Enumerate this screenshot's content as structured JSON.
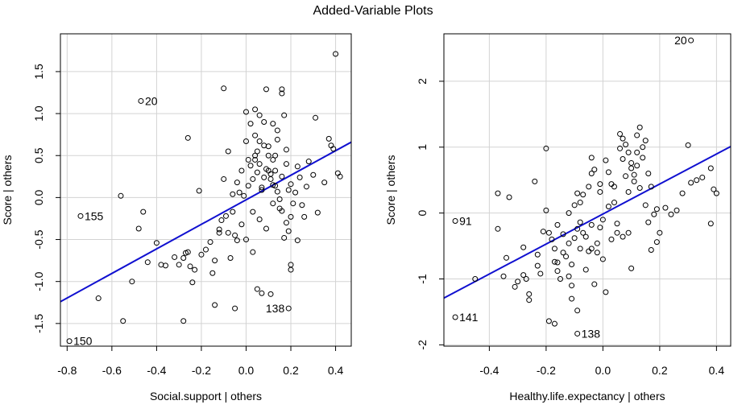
{
  "page": {
    "title": "Added-Variable Plots"
  },
  "colors": {
    "fit_line": "#1010d0",
    "grid": "#d3d3d3",
    "points": "#000000",
    "background": "#ffffff"
  },
  "chart_data": [
    {
      "type": "scatter",
      "xlabel": "Social.support | others",
      "ylabel": "Score  | others",
      "xlim": [
        -0.83,
        0.47
      ],
      "ylim": [
        -1.77,
        1.95
      ],
      "xticks": [
        -0.8,
        -0.6,
        -0.4,
        -0.2,
        0.0,
        0.2,
        0.4
      ],
      "yticks": [
        -1.5,
        -1.0,
        -0.5,
        0.0,
        0.5,
        1.0,
        1.5
      ],
      "tick_labels_x": [
        "-0.8",
        "-0.6",
        "-0.4",
        "-0.2",
        "0.0",
        "0.2",
        "0.4"
      ],
      "tick_labels_y": [
        "-1.5",
        "-1.0",
        "-0.5",
        "0.0",
        "0.5",
        "1.0",
        "1.5"
      ],
      "grid": true,
      "fit_line": {
        "x": [
          -0.83,
          0.47
        ],
        "y": [
          -1.24,
          0.66
        ]
      },
      "labeled_points": [
        {
          "x": -0.79,
          "y": -1.71,
          "label": "150"
        },
        {
          "x": -0.47,
          "y": 1.15,
          "label": "20"
        },
        {
          "x": -0.74,
          "y": -0.22,
          "label": "155"
        },
        {
          "x": 0.19,
          "y": -1.32,
          "label": "138"
        }
      ],
      "points": [
        [
          -0.56,
          0.02
        ],
        [
          -0.48,
          -0.37
        ],
        [
          -0.46,
          -0.17
        ],
        [
          -0.44,
          -0.77
        ],
        [
          -0.4,
          -0.54
        ],
        [
          -0.38,
          -0.8
        ],
        [
          -0.36,
          -0.81
        ],
        [
          -0.32,
          -0.71
        ],
        [
          -0.3,
          -0.8
        ],
        [
          -0.28,
          -0.72
        ],
        [
          -0.27,
          -0.66
        ],
        [
          -0.26,
          -0.65
        ],
        [
          -0.25,
          -0.82
        ],
        [
          -0.24,
          -1.01
        ],
        [
          -0.23,
          -0.86
        ],
        [
          -0.2,
          -0.68
        ],
        [
          -0.18,
          -0.62
        ],
        [
          -0.16,
          -0.53
        ],
        [
          -0.15,
          -0.9
        ],
        [
          -0.14,
          -0.75
        ],
        [
          -0.12,
          -0.38
        ],
        [
          -0.11,
          -0.27
        ],
        [
          -0.1,
          0.22
        ],
        [
          -0.09,
          -0.22
        ],
        [
          -0.08,
          -0.42
        ],
        [
          -0.07,
          -0.72
        ],
        [
          -0.06,
          -0.17
        ],
        [
          -0.05,
          -0.45
        ],
        [
          -0.04,
          -0.51
        ],
        [
          -0.03,
          0.06
        ],
        [
          -0.02,
          -0.32
        ],
        [
          -0.01,
          0.02
        ],
        [
          0.0,
          -0.5
        ],
        [
          0.01,
          0.14
        ],
        [
          0.02,
          0.38
        ],
        [
          0.03,
          -0.17
        ],
        [
          0.04,
          0.5
        ],
        [
          0.05,
          0.55
        ],
        [
          0.06,
          -0.26
        ],
        [
          0.07,
          0.09
        ],
        [
          0.08,
          0.24
        ],
        [
          0.09,
          -0.37
        ],
        [
          0.1,
          0.61
        ],
        [
          0.11,
          0.28
        ],
        [
          0.12,
          -0.07
        ],
        [
          0.13,
          0.14
        ],
        [
          0.14,
          0.69
        ],
        [
          0.15,
          -0.13
        ],
        [
          0.16,
          0.25
        ],
        [
          0.17,
          -0.48
        ],
        [
          0.18,
          0.4
        ],
        [
          0.19,
          0.09
        ],
        [
          0.2,
          -0.23
        ],
        [
          0.21,
          -0.07
        ],
        [
          0.22,
          0.06
        ],
        [
          0.23,
          -0.51
        ],
        [
          0.24,
          0.24
        ],
        [
          0.25,
          -0.09
        ],
        [
          0.26,
          -0.23
        ],
        [
          0.27,
          0.13
        ],
        [
          0.28,
          0.43
        ],
        [
          0.3,
          0.27
        ],
        [
          0.32,
          -0.18
        ],
        [
          0.35,
          0.18
        ],
        [
          0.37,
          0.7
        ],
        [
          0.38,
          0.62
        ],
        [
          0.39,
          0.58
        ],
        [
          0.41,
          0.29
        ],
        [
          0.42,
          0.25
        ],
        [
          0.4,
          1.71
        ],
        [
          -0.1,
          1.3
        ],
        [
          0.09,
          1.29
        ],
        [
          0.16,
          1.29
        ],
        [
          0.16,
          1.24
        ],
        [
          0.31,
          0.95
        ],
        [
          0.04,
          1.05
        ],
        [
          0.06,
          0.98
        ],
        [
          0.08,
          0.9
        ],
        [
          0.12,
          0.88
        ],
        [
          0.14,
          0.8
        ],
        [
          0.0,
          1.02
        ],
        [
          0.02,
          0.88
        ],
        [
          0.04,
          0.74
        ],
        [
          0.06,
          0.67
        ],
        [
          0.08,
          0.62
        ],
        [
          0.1,
          0.5
        ],
        [
          0.12,
          0.45
        ],
        [
          0.04,
          0.45
        ],
        [
          0.06,
          0.4
        ],
        [
          0.1,
          0.32
        ],
        [
          0.11,
          0.22
        ],
        [
          0.12,
          0.15
        ],
        [
          0.14,
          0.07
        ],
        [
          0.15,
          -0.02
        ],
        [
          0.16,
          -0.16
        ],
        [
          0.18,
          -0.3
        ],
        [
          0.19,
          -0.4
        ],
        [
          0.2,
          -0.8
        ],
        [
          0.2,
          -0.86
        ],
        [
          0.03,
          -0.65
        ],
        [
          0.05,
          -1.09
        ],
        [
          0.07,
          -1.14
        ],
        [
          0.11,
          -1.15
        ],
        [
          -0.05,
          -1.32
        ],
        [
          -0.14,
          -1.28
        ],
        [
          -0.28,
          -1.47
        ],
        [
          -0.55,
          -1.47
        ],
        [
          -0.66,
          -1.2
        ],
        [
          -0.51,
          -1.0
        ],
        [
          -0.26,
          0.71
        ],
        [
          -0.21,
          0.08
        ],
        [
          -0.12,
          -0.42
        ],
        [
          -0.08,
          0.55
        ],
        [
          -0.06,
          0.04
        ],
        [
          -0.04,
          0.18
        ],
        [
          -0.02,
          0.32
        ],
        [
          0.0,
          0.67
        ],
        [
          0.01,
          0.45
        ],
        [
          0.03,
          0.22
        ],
        [
          0.05,
          0.3
        ],
        [
          0.07,
          0.12
        ],
        [
          0.09,
          0.34
        ],
        [
          0.13,
          0.5
        ],
        [
          0.13,
          0.32
        ],
        [
          0.17,
          0.98
        ],
        [
          0.18,
          0.57
        ],
        [
          0.2,
          0.16
        ],
        [
          0.23,
          0.37
        ]
      ]
    },
    {
      "type": "scatter",
      "xlabel": "Healthy.life.expectancy | others",
      "ylabel": "Score  | others",
      "xlim": [
        -0.56,
        0.45
      ],
      "ylim": [
        -2.02,
        2.72
      ],
      "xticks": [
        -0.4,
        -0.2,
        0.0,
        0.2,
        0.4
      ],
      "yticks": [
        -2,
        -1,
        0,
        1,
        2
      ],
      "tick_labels_x": [
        "-0.4",
        "-0.2",
        "0.0",
        "0.2",
        "0.4"
      ],
      "tick_labels_y": [
        "-2",
        "-1",
        "0",
        "1",
        "2"
      ],
      "grid": true,
      "fit_line": {
        "x": [
          -0.56,
          0.45
        ],
        "y": [
          -1.29,
          1.01
        ]
      },
      "labeled_points": [
        {
          "x": 0.31,
          "y": 2.62,
          "label": "20"
        },
        {
          "x": -0.52,
          "y": -0.12,
          "label": "91"
        },
        {
          "x": -0.52,
          "y": -1.58,
          "label": "141"
        },
        {
          "x": -0.09,
          "y": -1.83,
          "label": "138"
        }
      ],
      "points": [
        [
          -0.45,
          -1.0
        ],
        [
          -0.37,
          0.3
        ],
        [
          -0.37,
          -0.24
        ],
        [
          -0.33,
          0.24
        ],
        [
          -0.3,
          -1.04
        ],
        [
          -0.28,
          -0.94
        ],
        [
          -0.27,
          -1.0
        ],
        [
          -0.26,
          -1.23
        ],
        [
          -0.24,
          0.48
        ],
        [
          -0.23,
          -0.63
        ],
        [
          -0.22,
          -0.92
        ],
        [
          -0.2,
          0.98
        ],
        [
          -0.19,
          -0.3
        ],
        [
          -0.18,
          -0.4
        ],
        [
          -0.17,
          -0.54
        ],
        [
          -0.16,
          -0.75
        ],
        [
          -0.16,
          -0.88
        ],
        [
          -0.15,
          -1.0
        ],
        [
          -0.14,
          -0.32
        ],
        [
          -0.13,
          -0.66
        ],
        [
          -0.12,
          -0.46
        ],
        [
          -0.11,
          -0.78
        ],
        [
          -0.1,
          -0.38
        ],
        [
          -0.09,
          -0.24
        ],
        [
          -0.09,
          0.3
        ],
        [
          -0.08,
          -0.54
        ],
        [
          -0.07,
          -0.3
        ],
        [
          -0.06,
          -0.36
        ],
        [
          -0.05,
          0.4
        ],
        [
          -0.05,
          -0.58
        ],
        [
          -0.04,
          -0.18
        ],
        [
          -0.03,
          0.66
        ],
        [
          -0.02,
          -0.46
        ],
        [
          -0.01,
          -0.22
        ],
        [
          0.0,
          -0.1
        ],
        [
          0.01,
          0.8
        ],
        [
          0.02,
          0.62
        ],
        [
          0.03,
          0.44
        ],
        [
          0.04,
          0.16
        ],
        [
          0.05,
          -0.16
        ],
        [
          0.06,
          0.98
        ],
        [
          0.07,
          0.82
        ],
        [
          0.08,
          0.56
        ],
        [
          0.09,
          0.32
        ],
        [
          0.1,
          0.68
        ],
        [
          0.11,
          0.48
        ],
        [
          0.12,
          0.92
        ],
        [
          0.12,
          0.72
        ],
        [
          0.13,
          0.38
        ],
        [
          0.14,
          1.0
        ],
        [
          0.15,
          0.12
        ],
        [
          0.16,
          -0.14
        ],
        [
          0.17,
          0.4
        ],
        [
          0.18,
          -0.02
        ],
        [
          0.19,
          0.06
        ],
        [
          0.2,
          -0.3
        ],
        [
          0.22,
          0.08
        ],
        [
          0.24,
          -0.02
        ],
        [
          0.26,
          0.04
        ],
        [
          0.28,
          0.3
        ],
        [
          0.3,
          1.03
        ],
        [
          0.31,
          0.46
        ],
        [
          0.33,
          0.5
        ],
        [
          0.35,
          0.54
        ],
        [
          0.38,
          0.68
        ],
        [
          0.39,
          0.36
        ],
        [
          0.4,
          0.3
        ],
        [
          0.38,
          -0.16
        ],
        [
          -0.21,
          -0.28
        ],
        [
          -0.26,
          -1.32
        ],
        [
          -0.19,
          -1.64
        ],
        [
          -0.17,
          -1.68
        ],
        [
          -0.11,
          -1.3
        ],
        [
          -0.09,
          -1.48
        ],
        [
          -0.03,
          -1.08
        ],
        [
          0.01,
          -1.2
        ],
        [
          0.0,
          -0.7
        ],
        [
          -0.04,
          -0.54
        ],
        [
          -0.06,
          -0.86
        ],
        [
          -0.11,
          -1.1
        ],
        [
          -0.14,
          -0.6
        ],
        [
          -0.08,
          0.16
        ],
        [
          -0.07,
          0.28
        ],
        [
          -0.04,
          0.84
        ],
        [
          -0.01,
          0.32
        ],
        [
          0.02,
          0.1
        ],
        [
          0.04,
          0.4
        ],
        [
          0.06,
          1.2
        ],
        [
          0.07,
          1.13
        ],
        [
          0.08,
          1.04
        ],
        [
          0.09,
          0.92
        ],
        [
          0.1,
          0.76
        ],
        [
          0.11,
          0.58
        ],
        [
          0.12,
          1.18
        ],
        [
          0.13,
          1.3
        ],
        [
          0.14,
          0.84
        ],
        [
          0.15,
          1.1
        ],
        [
          0.16,
          0.6
        ],
        [
          0.05,
          -0.3
        ],
        [
          0.03,
          -0.4
        ],
        [
          -0.02,
          -0.6
        ],
        [
          -0.12,
          -0.96
        ],
        [
          -0.17,
          -0.74
        ],
        [
          -0.23,
          -0.8
        ],
        [
          -0.28,
          -0.52
        ],
        [
          -0.31,
          -1.12
        ],
        [
          -0.34,
          -0.68
        ],
        [
          -0.35,
          -0.96
        ],
        [
          0.1,
          -0.84
        ],
        [
          0.17,
          -0.56
        ],
        [
          0.19,
          -0.44
        ],
        [
          0.09,
          -0.3
        ],
        [
          0.07,
          -0.36
        ],
        [
          -0.01,
          0.44
        ],
        [
          -0.04,
          0.6
        ],
        [
          -0.1,
          0.12
        ],
        [
          -0.08,
          -0.14
        ],
        [
          -0.12,
          0.0
        ],
        [
          -0.16,
          -0.18
        ],
        [
          -0.2,
          0.04
        ]
      ]
    }
  ]
}
